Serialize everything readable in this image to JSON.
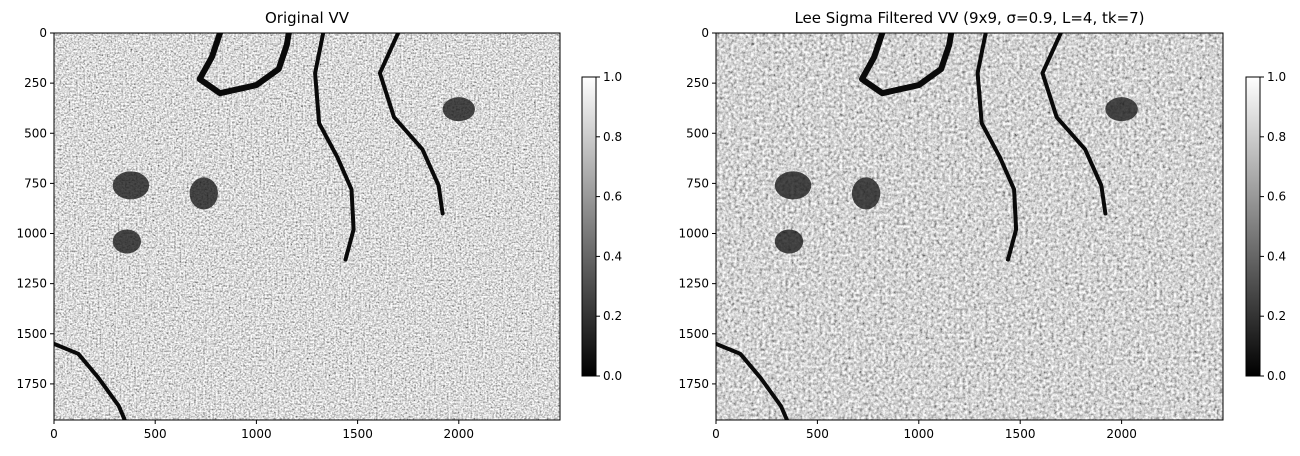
{
  "chart_data": [
    {
      "type": "heatmap",
      "title": "Original VV",
      "xlim": [
        0,
        2500
      ],
      "ylim": [
        1930,
        0
      ],
      "xticks": [
        0,
        500,
        1000,
        1500,
        2000
      ],
      "xtick_labels": [
        "0",
        "500",
        "1000",
        "1500",
        "2000"
      ],
      "yticks": [
        0,
        250,
        500,
        750,
        1000,
        1250,
        1500,
        1750
      ],
      "ytick_labels": [
        "0",
        "250",
        "500",
        "750",
        "1000",
        "1250",
        "1500",
        "1750"
      ],
      "colormap": "gray",
      "colorbar": {
        "min": 0.0,
        "max": 1.0,
        "ticks": [
          0.0,
          0.2,
          0.4,
          0.6,
          0.8,
          1.0
        ],
        "tick_labels": [
          "0.0",
          "0.2",
          "0.4",
          "0.6",
          "0.8",
          "1.0"
        ]
      }
    },
    {
      "type": "heatmap",
      "title": "Lee Sigma Filtered VV (9x9, σ=0.9, L=4, tk=7)",
      "xlim": [
        0,
        2500
      ],
      "ylim": [
        1930,
        0
      ],
      "xticks": [
        0,
        500,
        1000,
        1500,
        2000
      ],
      "xtick_labels": [
        "0",
        "500",
        "1000",
        "1500",
        "2000"
      ],
      "yticks": [
        0,
        250,
        500,
        750,
        1000,
        1250,
        1500,
        1750
      ],
      "ytick_labels": [
        "0",
        "250",
        "500",
        "750",
        "1000",
        "1250",
        "1500",
        "1750"
      ],
      "colormap": "gray",
      "colorbar": {
        "min": 0.0,
        "max": 1.0,
        "ticks": [
          0.0,
          0.2,
          0.4,
          0.6,
          0.8,
          1.0
        ],
        "tick_labels": [
          "0.0",
          "0.2",
          "0.4",
          "0.6",
          "0.8",
          "1.0"
        ]
      }
    }
  ]
}
